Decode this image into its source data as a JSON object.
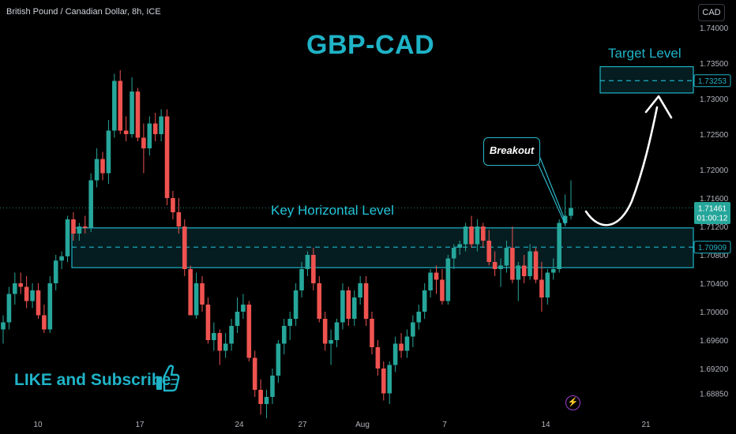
{
  "header": {
    "symbol_info": "British Pound / Canadian Dollar, 8h, ICE",
    "currency": "CAD"
  },
  "annotations": {
    "title": "GBP-CAD",
    "target_label": "Target Level",
    "key_level_label": "Key Horizontal Level",
    "breakout_label": "Breakout",
    "like_text": "LIKE and Subscribe",
    "icons": [
      "thumbs-up-icon",
      "lightning-icon"
    ]
  },
  "price_tags": [
    {
      "name": "target-price-tag",
      "price": 1.73253,
      "text": "1.73253"
    },
    {
      "name": "current-price-tag",
      "price": 1.71461,
      "text": "1.71461",
      "sub": "01:00:12"
    },
    {
      "name": "key-level-price-tag",
      "price": 1.70909,
      "text": "1.70909"
    }
  ],
  "colors": {
    "background": "#000000",
    "bullish": "#26a69a",
    "bearish": "#ef5350",
    "zone": "#1fb3c7",
    "text": "#d1d4dc"
  },
  "chart_data": {
    "type": "candlestick",
    "title": "GBP-CAD",
    "timeframe": "8h",
    "x_ticks": [
      "10",
      "17",
      "24",
      "27",
      "Aug",
      "7",
      "14",
      "21"
    ],
    "y_ticks": [
      1.74,
      1.735,
      1.73,
      1.725,
      1.72,
      1.716,
      1.712,
      1.708,
      1.704,
      1.7,
      1.696,
      1.692,
      1.6885
    ],
    "y_tick_labels": [
      "1.74000",
      "1.73500",
      "1.73000",
      "1.72500",
      "1.72000",
      "1.71600",
      "1.71200",
      "1.70800",
      "1.70400",
      "1.70000",
      "1.69600",
      "1.69200",
      "1.68850"
    ],
    "ylim": [
      1.6856,
      1.7415
    ],
    "key_zone": {
      "low": 1.7062,
      "high": 1.7118,
      "mid": 1.70909
    },
    "target_zone": {
      "low": 1.7308,
      "high": 1.7345,
      "mid": 1.73253
    },
    "last_price": 1.71461,
    "candles": [
      [
        1.6975,
        1.6995,
        1.6955,
        1.6985
      ],
      [
        1.6985,
        1.7035,
        1.6975,
        1.7025
      ],
      [
        1.7025,
        1.7055,
        1.701,
        1.704
      ],
      [
        1.704,
        1.7055,
        1.7025,
        1.7035
      ],
      [
        1.7035,
        1.705,
        1.7005,
        1.7015
      ],
      [
        1.7015,
        1.704,
        1.7005,
        1.703
      ],
      [
        1.703,
        1.704,
        1.699,
        1.6995
      ],
      [
        1.6995,
        1.701,
        1.697,
        1.6975
      ],
      [
        1.6975,
        1.705,
        1.697,
        1.704
      ],
      [
        1.704,
        1.708,
        1.703,
        1.7072
      ],
      [
        1.7072,
        1.7085,
        1.706,
        1.7078
      ],
      [
        1.7078,
        1.7135,
        1.707,
        1.713
      ],
      [
        1.713,
        1.714,
        1.71,
        1.711
      ],
      [
        1.711,
        1.7125,
        1.71,
        1.712
      ],
      [
        1.712,
        1.7135,
        1.711,
        1.7118
      ],
      [
        1.7118,
        1.7195,
        1.7112,
        1.7185
      ],
      [
        1.7185,
        1.723,
        1.7175,
        1.7215
      ],
      [
        1.7215,
        1.7225,
        1.7185,
        1.7195
      ],
      [
        1.7195,
        1.727,
        1.718,
        1.7255
      ],
      [
        1.7255,
        1.7335,
        1.7245,
        1.7325
      ],
      [
        1.7325,
        1.734,
        1.725,
        1.7255
      ],
      [
        1.7255,
        1.7275,
        1.724,
        1.725
      ],
      [
        1.725,
        1.733,
        1.7245,
        1.731
      ],
      [
        1.731,
        1.7315,
        1.724,
        1.7245
      ],
      [
        1.7245,
        1.7265,
        1.7195,
        1.723
      ],
      [
        1.723,
        1.7275,
        1.722,
        1.7265
      ],
      [
        1.7265,
        1.728,
        1.724,
        1.725
      ],
      [
        1.725,
        1.7285,
        1.724,
        1.7275
      ],
      [
        1.7275,
        1.7285,
        1.715,
        1.716
      ],
      [
        1.716,
        1.717,
        1.713,
        1.714
      ],
      [
        1.714,
        1.716,
        1.711,
        1.712
      ],
      [
        1.712,
        1.713,
        1.705,
        1.706
      ],
      [
        1.706,
        1.7065,
        1.7,
        1.6995
      ],
      [
        1.6995,
        1.7055,
        1.699,
        1.704
      ],
      [
        1.704,
        1.705,
        1.7,
        1.701
      ],
      [
        1.701,
        1.702,
        1.6955,
        1.696
      ],
      [
        1.696,
        1.6985,
        1.6945,
        1.697
      ],
      [
        1.697,
        1.6975,
        1.6925,
        1.6945
      ],
      [
        1.6945,
        1.697,
        1.6935,
        1.6955
      ],
      [
        1.6955,
        1.699,
        1.6945,
        1.698
      ],
      [
        1.698,
        1.702,
        1.697,
        1.7
      ],
      [
        1.7,
        1.7025,
        1.699,
        1.701
      ],
      [
        1.701,
        1.7015,
        1.693,
        1.6935
      ],
      [
        1.6935,
        1.6945,
        1.688,
        1.689
      ],
      [
        1.689,
        1.6905,
        1.6855,
        1.687
      ],
      [
        1.687,
        1.689,
        1.685,
        1.688
      ],
      [
        1.688,
        1.692,
        1.687,
        1.691
      ],
      [
        1.691,
        1.696,
        1.69,
        1.6955
      ],
      [
        1.6955,
        1.699,
        1.694,
        1.698
      ],
      [
        1.698,
        1.7,
        1.696,
        1.699
      ],
      [
        1.699,
        1.704,
        1.698,
        1.703
      ],
      [
        1.703,
        1.707,
        1.702,
        1.706
      ],
      [
        1.706,
        1.7085,
        1.705,
        1.708
      ],
      [
        1.708,
        1.709,
        1.703,
        1.704
      ],
      [
        1.704,
        1.705,
        1.6985,
        1.699
      ],
      [
        1.699,
        1.7,
        1.6945,
        1.6955
      ],
      [
        1.6955,
        1.6975,
        1.6925,
        1.696
      ],
      [
        1.696,
        1.699,
        1.695,
        1.6985
      ],
      [
        1.6985,
        1.704,
        1.6975,
        1.703
      ],
      [
        1.703,
        1.7035,
        1.698,
        1.699
      ],
      [
        1.699,
        1.703,
        1.698,
        1.702
      ],
      [
        1.702,
        1.705,
        1.701,
        1.704
      ],
      [
        1.704,
        1.705,
        1.698,
        1.699
      ],
      [
        1.699,
        1.7,
        1.694,
        1.695
      ],
      [
        1.695,
        1.696,
        1.691,
        1.692
      ],
      [
        1.692,
        1.693,
        1.6875,
        1.6885
      ],
      [
        1.6885,
        1.693,
        1.687,
        1.6925
      ],
      [
        1.6925,
        1.6965,
        1.6915,
        1.6955
      ],
      [
        1.6955,
        1.697,
        1.6935,
        1.6945
      ],
      [
        1.6945,
        1.6975,
        1.6935,
        1.6965
      ],
      [
        1.6965,
        1.6995,
        1.695,
        1.6985
      ],
      [
        1.6985,
        1.701,
        1.6975,
        1.7
      ],
      [
        1.7,
        1.704,
        1.699,
        1.703
      ],
      [
        1.703,
        1.706,
        1.702,
        1.7055
      ],
      [
        1.7055,
        1.7065,
        1.7025,
        1.7045
      ],
      [
        1.7045,
        1.706,
        1.701,
        1.7015
      ],
      [
        1.7015,
        1.708,
        1.701,
        1.7075
      ],
      [
        1.7075,
        1.7095,
        1.706,
        1.709
      ],
      [
        1.709,
        1.71,
        1.708,
        1.7095
      ],
      [
        1.7095,
        1.7125,
        1.7085,
        1.712
      ],
      [
        1.712,
        1.7135,
        1.709,
        1.7095
      ],
      [
        1.7095,
        1.713,
        1.7085,
        1.712
      ],
      [
        1.712,
        1.7125,
        1.709,
        1.71
      ],
      [
        1.71,
        1.7115,
        1.7065,
        1.707
      ],
      [
        1.707,
        1.7085,
        1.705,
        1.706
      ],
      [
        1.706,
        1.7075,
        1.7035,
        1.7065
      ],
      [
        1.7065,
        1.71,
        1.7055,
        1.709
      ],
      [
        1.709,
        1.712,
        1.704,
        1.7045
      ],
      [
        1.7045,
        1.707,
        1.7015,
        1.7065
      ],
      [
        1.7065,
        1.708,
        1.704,
        1.705
      ],
      [
        1.705,
        1.7095,
        1.7045,
        1.7085
      ],
      [
        1.7085,
        1.709,
        1.704,
        1.7045
      ],
      [
        1.7045,
        1.707,
        1.7,
        1.702
      ],
      [
        1.702,
        1.706,
        1.701,
        1.7055
      ],
      [
        1.7055,
        1.7075,
        1.7045,
        1.706
      ],
      [
        1.706,
        1.713,
        1.7055,
        1.7125
      ],
      [
        1.7125,
        1.7165,
        1.712,
        1.7135
      ],
      [
        1.7135,
        1.7185,
        1.713,
        1.7146
      ]
    ]
  }
}
